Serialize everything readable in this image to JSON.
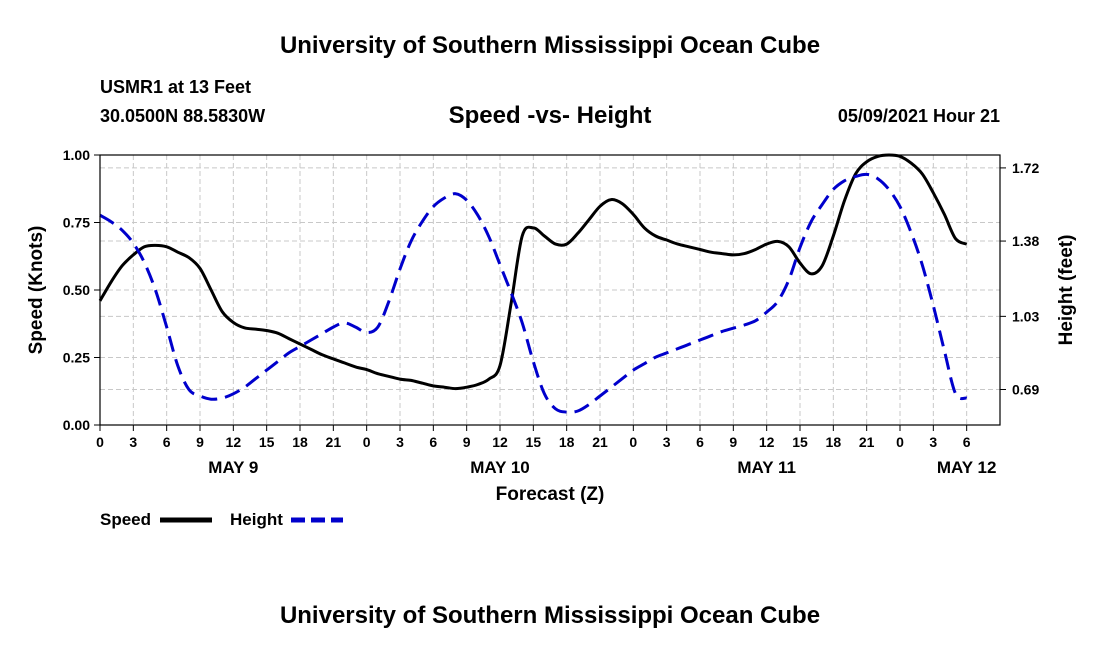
{
  "page": {
    "title_top": "University of Southern Mississippi Ocean Cube",
    "title_bottom": "University of Southern Mississippi Ocean Cube",
    "station": "USMR1 at 13 Feet",
    "coords": "30.0500N  88.5830W",
    "subtitle": "Speed -vs- Height",
    "datetime": "05/09/2021 Hour 21"
  },
  "chart_data": {
    "type": "line",
    "title": "Speed -vs- Height",
    "xlabel": "Forecast (Z)",
    "ylabel": "Speed (Knots)",
    "y2label": "Height (feet)",
    "ylim": [
      0,
      1.0
    ],
    "y2lim": [
      0.525,
      1.78
    ],
    "xlim": [
      0,
      81
    ],
    "grid": true,
    "legend_position": "bottom-left",
    "x_ticks": [
      {
        "x": 0,
        "label": "0"
      },
      {
        "x": 3,
        "label": "3"
      },
      {
        "x": 6,
        "label": "6"
      },
      {
        "x": 9,
        "label": "9"
      },
      {
        "x": 12,
        "label": "12"
      },
      {
        "x": 15,
        "label": "15"
      },
      {
        "x": 18,
        "label": "18"
      },
      {
        "x": 21,
        "label": "21"
      },
      {
        "x": 24,
        "label": "0"
      },
      {
        "x": 27,
        "label": "3"
      },
      {
        "x": 30,
        "label": "6"
      },
      {
        "x": 33,
        "label": "9"
      },
      {
        "x": 36,
        "label": "12"
      },
      {
        "x": 39,
        "label": "15"
      },
      {
        "x": 42,
        "label": "18"
      },
      {
        "x": 45,
        "label": "21"
      },
      {
        "x": 48,
        "label": "0"
      },
      {
        "x": 51,
        "label": "3"
      },
      {
        "x": 54,
        "label": "6"
      },
      {
        "x": 57,
        "label": "9"
      },
      {
        "x": 60,
        "label": "12"
      },
      {
        "x": 63,
        "label": "15"
      },
      {
        "x": 66,
        "label": "18"
      },
      {
        "x": 69,
        "label": "21"
      },
      {
        "x": 72,
        "label": "0"
      },
      {
        "x": 75,
        "label": "3"
      },
      {
        "x": 78,
        "label": "6"
      }
    ],
    "day_labels": [
      {
        "x": 12,
        "label": "MAY 9"
      },
      {
        "x": 36,
        "label": "MAY 10"
      },
      {
        "x": 60,
        "label": "MAY 11"
      },
      {
        "x": 78,
        "label": "MAY 12"
      }
    ],
    "y_ticks": [
      {
        "value": 0.0,
        "label": "0.00"
      },
      {
        "value": 0.25,
        "label": "0.25"
      },
      {
        "value": 0.5,
        "label": "0.50"
      },
      {
        "value": 0.75,
        "label": "0.75"
      },
      {
        "value": 1.0,
        "label": "1.00"
      }
    ],
    "y2_ticks": [
      {
        "value": 0.69,
        "label": "0.69"
      },
      {
        "value": 1.03,
        "label": "1.03"
      },
      {
        "value": 1.38,
        "label": "1.38"
      },
      {
        "value": 1.72,
        "label": "1.72"
      }
    ],
    "series": [
      {
        "name": "Speed",
        "axis": "left",
        "color": "#000000",
        "dash": "solid",
        "x": [
          0,
          1,
          2,
          3,
          4,
          5,
          6,
          7,
          8,
          9,
          10,
          11,
          12,
          13,
          14,
          15,
          16,
          17,
          18,
          19,
          20,
          21,
          22,
          23,
          24,
          25,
          26,
          27,
          28,
          29,
          30,
          31,
          32,
          33,
          34,
          35,
          36,
          37,
          38,
          39,
          40,
          41,
          42,
          43,
          44,
          45,
          46,
          47,
          48,
          49,
          50,
          51,
          52,
          53,
          54,
          55,
          56,
          57,
          58,
          59,
          60,
          61,
          62,
          63,
          64,
          65,
          66,
          67,
          68,
          69,
          70,
          71,
          72,
          73,
          74,
          75,
          76,
          77,
          78
        ],
        "values": [
          0.46,
          0.53,
          0.59,
          0.63,
          0.66,
          0.665,
          0.66,
          0.64,
          0.62,
          0.58,
          0.5,
          0.42,
          0.38,
          0.36,
          0.355,
          0.35,
          0.34,
          0.32,
          0.3,
          0.28,
          0.26,
          0.245,
          0.23,
          0.215,
          0.205,
          0.19,
          0.18,
          0.17,
          0.165,
          0.155,
          0.145,
          0.14,
          0.135,
          0.14,
          0.15,
          0.17,
          0.22,
          0.45,
          0.7,
          0.73,
          0.7,
          0.67,
          0.67,
          0.71,
          0.76,
          0.81,
          0.835,
          0.82,
          0.78,
          0.73,
          0.7,
          0.685,
          0.67,
          0.66,
          0.65,
          0.64,
          0.635,
          0.63,
          0.635,
          0.65,
          0.67,
          0.68,
          0.66,
          0.6,
          0.56,
          0.59,
          0.7,
          0.83,
          0.93,
          0.975,
          0.995,
          1.0,
          0.995,
          0.97,
          0.93,
          0.86,
          0.78,
          0.69,
          0.67
        ]
      },
      {
        "name": "Height",
        "axis": "right",
        "color": "#0000cc",
        "dash": "dashed",
        "x": [
          0,
          1,
          2,
          3,
          4,
          5,
          6,
          7,
          8,
          9,
          10,
          11,
          12,
          13,
          14,
          15,
          16,
          17,
          18,
          19,
          20,
          21,
          22,
          23,
          24,
          25,
          26,
          27,
          28,
          29,
          30,
          31,
          32,
          33,
          34,
          35,
          36,
          37,
          38,
          39,
          40,
          41,
          42,
          43,
          44,
          45,
          46,
          47,
          48,
          49,
          50,
          51,
          52,
          53,
          54,
          55,
          56,
          57,
          58,
          59,
          60,
          61,
          62,
          63,
          64,
          65,
          66,
          67,
          68,
          69,
          70,
          71,
          72,
          73,
          74,
          75,
          76,
          77,
          78
        ],
        "values": [
          1.5,
          1.47,
          1.43,
          1.37,
          1.28,
          1.15,
          0.98,
          0.8,
          0.69,
          0.66,
          0.645,
          0.65,
          0.67,
          0.7,
          0.74,
          0.78,
          0.82,
          0.86,
          0.89,
          0.92,
          0.95,
          0.98,
          1.0,
          0.98,
          0.955,
          0.98,
          1.1,
          1.25,
          1.38,
          1.47,
          1.54,
          1.58,
          1.6,
          1.57,
          1.5,
          1.4,
          1.27,
          1.14,
          1.0,
          0.82,
          0.67,
          0.6,
          0.585,
          0.59,
          0.62,
          0.66,
          0.7,
          0.74,
          0.78,
          0.81,
          0.84,
          0.86,
          0.88,
          0.9,
          0.92,
          0.94,
          0.96,
          0.975,
          0.99,
          1.01,
          1.05,
          1.1,
          1.2,
          1.35,
          1.47,
          1.55,
          1.62,
          1.66,
          1.68,
          1.69,
          1.67,
          1.62,
          1.54,
          1.42,
          1.27,
          1.08,
          0.87,
          0.67,
          0.65
        ]
      }
    ]
  }
}
